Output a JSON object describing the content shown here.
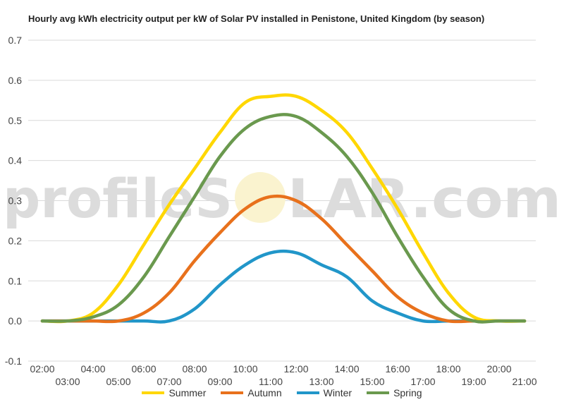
{
  "title": "Hourly avg kWh electricity output per kW of Solar PV installed in Penistone, United Kingdom (by season)",
  "watermark": {
    "part1": "profileS",
    "part2": "LAR.com"
  },
  "chart_data": {
    "type": "line",
    "title": "Hourly avg kWh electricity output per kW of Solar PV installed in Penistone, United Kingdom (by season)",
    "xlabel": "",
    "ylabel": "",
    "ylim": [
      -0.1,
      0.7
    ],
    "yticks": [
      "-0.1",
      "0.0",
      "0.1",
      "0.2",
      "0.3",
      "0.4",
      "0.5",
      "0.6",
      "0.7"
    ],
    "xticks_upper": [
      "02:00",
      "04:00",
      "06:00",
      "08:00",
      "10:00",
      "12:00",
      "14:00",
      "16:00",
      "18:00",
      "20:00"
    ],
    "xticks_lower": [
      "03:00",
      "05:00",
      "07:00",
      "09:00",
      "11:00",
      "13:00",
      "15:00",
      "17:00",
      "19:00",
      "21:00"
    ],
    "x": [
      "02:00",
      "03:00",
      "04:00",
      "05:00",
      "06:00",
      "07:00",
      "08:00",
      "09:00",
      "10:00",
      "11:00",
      "12:00",
      "13:00",
      "14:00",
      "15:00",
      "16:00",
      "17:00",
      "18:00",
      "19:00",
      "20:00",
      "21:00"
    ],
    "grid": true,
    "legend_position": "bottom",
    "series": [
      {
        "name": "Summer",
        "color": "#FFD700",
        "values": [
          0.0,
          0.0,
          0.02,
          0.09,
          0.19,
          0.29,
          0.38,
          0.47,
          0.545,
          0.56,
          0.56,
          0.525,
          0.47,
          0.38,
          0.28,
          0.17,
          0.07,
          0.01,
          0.0,
          0.0
        ]
      },
      {
        "name": "Autumn",
        "color": "#E8711C",
        "values": [
          0.0,
          0.0,
          0.0,
          0.0,
          0.02,
          0.07,
          0.15,
          0.22,
          0.28,
          0.31,
          0.3,
          0.255,
          0.19,
          0.125,
          0.06,
          0.02,
          0.0,
          0.0,
          0.0,
          0.0
        ]
      },
      {
        "name": "Winter",
        "color": "#2196C9",
        "values": [
          0.0,
          0.0,
          0.0,
          0.0,
          0.0,
          0.0,
          0.03,
          0.09,
          0.14,
          0.17,
          0.17,
          0.14,
          0.11,
          0.05,
          0.02,
          0.0,
          0.0,
          0.0,
          0.0,
          0.0
        ]
      },
      {
        "name": "Spring",
        "color": "#6A994E",
        "values": [
          0.0,
          0.0,
          0.01,
          0.04,
          0.11,
          0.21,
          0.31,
          0.41,
          0.48,
          0.51,
          0.51,
          0.47,
          0.41,
          0.32,
          0.21,
          0.11,
          0.03,
          0.0,
          0.0,
          0.0
        ]
      }
    ]
  }
}
